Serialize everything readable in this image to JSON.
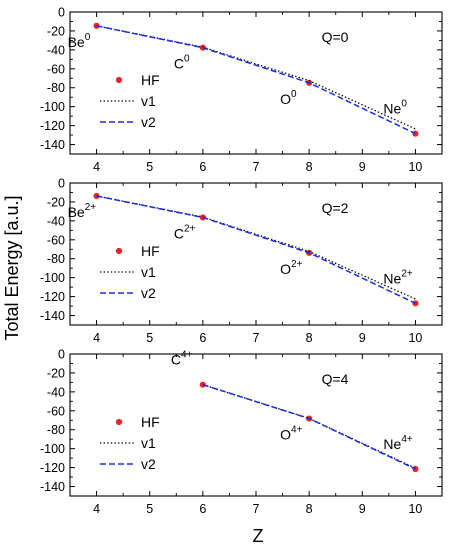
{
  "figure": {
    "ylabel": "Total Energy [a.u.]",
    "xlabel": "Z"
  },
  "chart_data": [
    {
      "type": "line",
      "panel_label": "Q=0",
      "xlim": [
        3.5,
        10.5
      ],
      "ylim": [
        -150,
        0
      ],
      "xticks": [
        4,
        5,
        6,
        7,
        8,
        9,
        10
      ],
      "yticks": [
        0,
        -20,
        -40,
        -60,
        -80,
        -100,
        -120,
        -140
      ],
      "grid": false,
      "legend": {
        "position": "left",
        "entries": [
          "HF",
          "v1",
          "v2"
        ]
      },
      "x": [
        4,
        6,
        8,
        10
      ],
      "series": [
        {
          "name": "HF",
          "style": "markers",
          "color": "#e8262c",
          "values": [
            -14.6,
            -37.7,
            -74.8,
            -128.5
          ]
        },
        {
          "name": "v1",
          "style": "dotted",
          "color": "#000000",
          "values": [
            -14.6,
            -37.2,
            -72.5,
            -123.5
          ]
        },
        {
          "name": "v2",
          "style": "dashed",
          "color": "#1a2ee0",
          "values": [
            -14.6,
            -37.7,
            -74.8,
            -128.5
          ]
        }
      ],
      "point_labels": [
        {
          "x": 4,
          "base": "Be",
          "sup": "0",
          "pos": "below-left"
        },
        {
          "x": 6,
          "base": "C",
          "sup": "0",
          "pos": "below-left"
        },
        {
          "x": 8,
          "base": "O",
          "sup": "0",
          "pos": "below-left"
        },
        {
          "x": 10,
          "base": "Ne",
          "sup": "0",
          "pos": "above-left"
        }
      ]
    },
    {
      "type": "line",
      "panel_label": "Q=2",
      "xlim": [
        3.5,
        10.5
      ],
      "ylim": [
        -150,
        0
      ],
      "xticks": [
        4,
        5,
        6,
        7,
        8,
        9,
        10
      ],
      "yticks": [
        0,
        -20,
        -40,
        -60,
        -80,
        -100,
        -120,
        -140
      ],
      "grid": false,
      "legend": {
        "position": "left",
        "entries": [
          "HF",
          "v1",
          "v2"
        ]
      },
      "x": [
        4,
        6,
        8,
        10
      ],
      "series": [
        {
          "name": "HF",
          "style": "markers",
          "color": "#e8262c",
          "values": [
            -13.7,
            -36.4,
            -73.8,
            -127.1
          ]
        },
        {
          "name": "v1",
          "style": "dotted",
          "color": "#000000",
          "values": [
            -13.7,
            -36.0,
            -72.3,
            -122.5
          ]
        },
        {
          "name": "v2",
          "style": "dashed",
          "color": "#1a2ee0",
          "values": [
            -13.7,
            -36.4,
            -73.8,
            -127.1
          ]
        }
      ],
      "point_labels": [
        {
          "x": 4,
          "base": "Be",
          "sup": "2+",
          "pos": "below-left"
        },
        {
          "x": 6,
          "base": "C",
          "sup": "2+",
          "pos": "below-left"
        },
        {
          "x": 8,
          "base": "O",
          "sup": "2+",
          "pos": "below-left"
        },
        {
          "x": 10,
          "base": "Ne",
          "sup": "2+",
          "pos": "above-left"
        }
      ]
    },
    {
      "type": "line",
      "panel_label": "Q=4",
      "xlim": [
        3.5,
        10.5
      ],
      "ylim": [
        -150,
        0
      ],
      "xticks": [
        4,
        5,
        6,
        7,
        8,
        9,
        10
      ],
      "yticks": [
        0,
        -20,
        -40,
        -60,
        -80,
        -100,
        -120,
        -140
      ],
      "grid": false,
      "legend": {
        "position": "left",
        "entries": [
          "HF",
          "v1",
          "v2"
        ]
      },
      "x": [
        6,
        8,
        10
      ],
      "series": [
        {
          "name": "HF",
          "style": "markers",
          "color": "#e8262c",
          "values": [
            -32.4,
            -68.2,
            -121.5
          ]
        },
        {
          "name": "v1",
          "style": "dotted",
          "color": "#000000",
          "values": [
            -32.4,
            -68.0,
            -120.6
          ]
        },
        {
          "name": "v2",
          "style": "dashed",
          "color": "#1a2ee0",
          "values": [
            -32.4,
            -68.2,
            -121.5
          ]
        }
      ],
      "point_labels": [
        {
          "x": 6,
          "base": "C",
          "sup": "4+",
          "pos": "above-left"
        },
        {
          "x": 8,
          "base": "O",
          "sup": "4+",
          "pos": "below-left"
        },
        {
          "x": 10,
          "base": "Ne",
          "sup": "4+",
          "pos": "above-left"
        }
      ]
    }
  ]
}
